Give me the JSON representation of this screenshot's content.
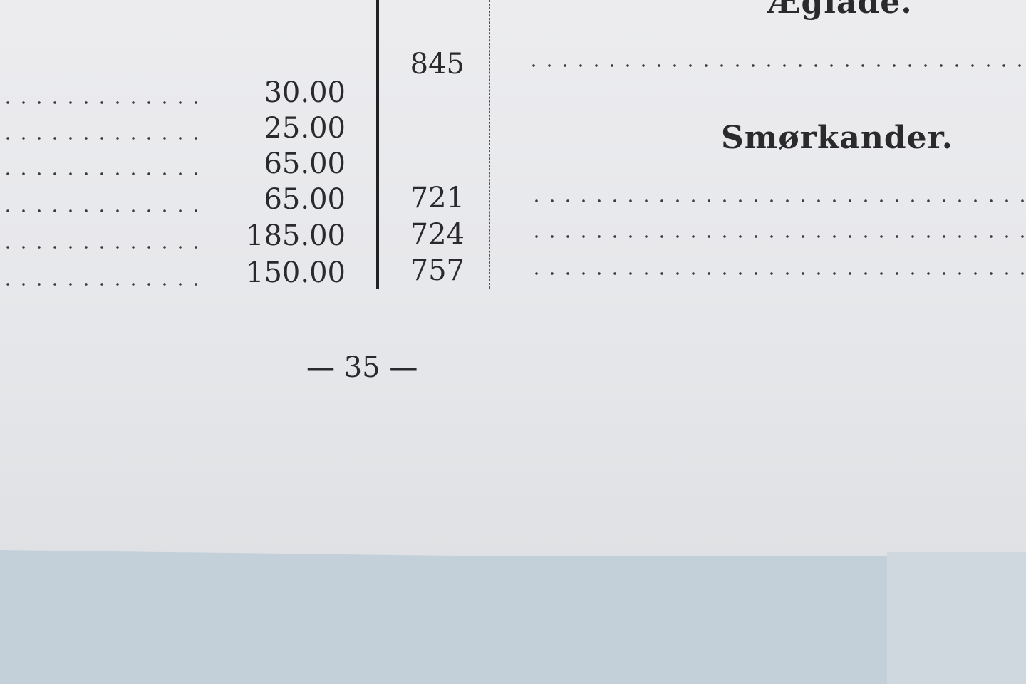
{
  "headings": {
    "top": "Æglade.",
    "section": "Smørkander."
  },
  "rows": [
    {
      "price": "",
      "number": "845"
    },
    {
      "price": "30.00",
      "number": ""
    },
    {
      "price": "25.00",
      "number": ""
    },
    {
      "price": "65.00",
      "number": ""
    },
    {
      "price": "65.00",
      "number": "721"
    },
    {
      "price": "185.00",
      "number": "724"
    },
    {
      "price": "150.00",
      "number": "757"
    }
  ],
  "page_number": "— 35 —"
}
